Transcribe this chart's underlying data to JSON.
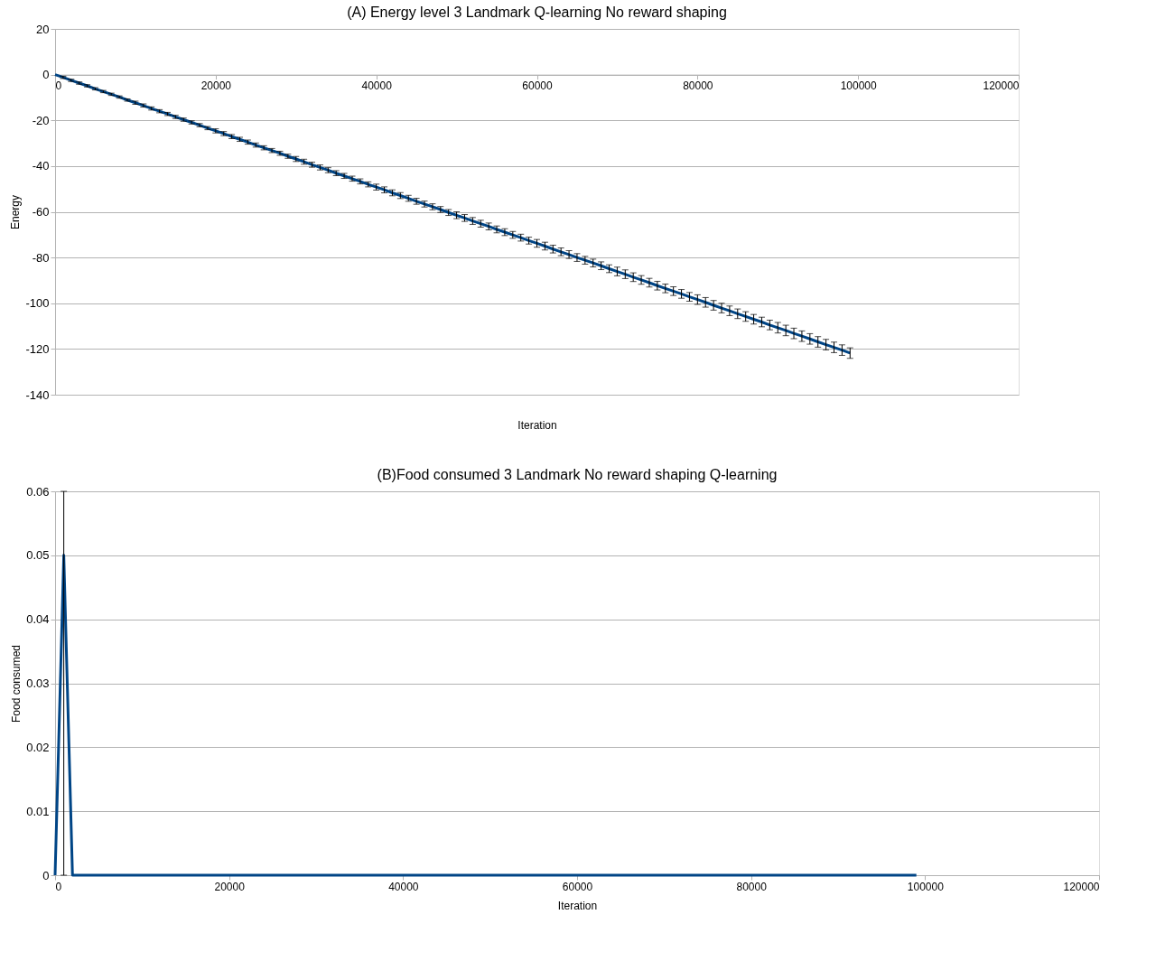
{
  "chart_data": [
    {
      "type": "line",
      "title": "(A) Energy level 3 Landmark Q-learning No reward shaping",
      "xlabel": "Iteration",
      "ylabel": "Energy",
      "x": [
        0,
        1000,
        2000,
        3000,
        4000,
        5000,
        6000,
        7000,
        8000,
        9000,
        10000,
        11000,
        12000,
        13000,
        14000,
        15000,
        16000,
        17000,
        18000,
        19000,
        20000,
        21000,
        22000,
        23000,
        24000,
        25000,
        26000,
        27000,
        28000,
        29000,
        30000,
        31000,
        32000,
        33000,
        34000,
        35000,
        36000,
        37000,
        38000,
        39000,
        40000,
        41000,
        42000,
        43000,
        44000,
        45000,
        46000,
        47000,
        48000,
        49000,
        50000,
        51000,
        52000,
        53000,
        54000,
        55000,
        56000,
        57000,
        58000,
        59000,
        60000,
        61000,
        62000,
        63000,
        64000,
        65000,
        66000,
        67000,
        68000,
        69000,
        70000,
        71000,
        72000,
        73000,
        74000,
        75000,
        76000,
        77000,
        78000,
        79000,
        80000,
        81000,
        82000,
        83000,
        84000,
        85000,
        86000,
        87000,
        88000,
        89000,
        90000,
        91000,
        92000,
        93000,
        94000,
        95000,
        96000,
        97000,
        98000,
        99000
      ],
      "series": [
        {
          "color": "#004586",
          "values": [
            0,
            -1.2,
            -2.5,
            -3.7,
            -4.9,
            -6.2,
            -7.4,
            -8.6,
            -9.8,
            -11.1,
            -12.3,
            -13.5,
            -14.8,
            -16.0,
            -17.2,
            -18.5,
            -19.7,
            -20.9,
            -22.1,
            -23.4,
            -24.6,
            -25.8,
            -27.1,
            -28.3,
            -29.5,
            -30.8,
            -32.0,
            -33.2,
            -34.4,
            -35.7,
            -36.9,
            -38.1,
            -39.4,
            -40.6,
            -41.8,
            -43.1,
            -44.3,
            -45.5,
            -46.7,
            -48.0,
            -49.2,
            -50.4,
            -51.7,
            -52.9,
            -54.1,
            -55.4,
            -56.6,
            -57.8,
            -59.0,
            -60.3,
            -61.5,
            -62.7,
            -64.0,
            -65.2,
            -66.4,
            -67.7,
            -68.9,
            -70.1,
            -71.3,
            -72.6,
            -73.8,
            -75.0,
            -76.3,
            -77.5,
            -78.7,
            -80.0,
            -81.2,
            -82.4,
            -83.6,
            -84.9,
            -86.1,
            -87.3,
            -88.6,
            -89.8,
            -91.0,
            -92.3,
            -93.5,
            -94.7,
            -95.9,
            -97.2,
            -98.4,
            -99.6,
            -100.9,
            -102.1,
            -103.3,
            -104.6,
            -105.8,
            -107.0,
            -108.2,
            -109.5,
            -110.7,
            -111.9,
            -113.2,
            -114.4,
            -115.6,
            -116.9,
            -118.1,
            -119.3,
            -120.5,
            -121.8
          ],
          "errors": [
            null,
            0.5,
            0.5,
            0.5,
            0.5,
            0.5,
            0.5,
            0.5,
            0.5,
            0.5,
            0.7,
            0.7,
            0.7,
            0.7,
            0.7,
            0.7,
            0.7,
            0.7,
            0.7,
            0.7,
            0.9,
            0.9,
            0.9,
            0.9,
            0.9,
            0.9,
            0.9,
            0.9,
            0.9,
            0.9,
            1.1,
            1.1,
            1.1,
            1.1,
            1.1,
            1.1,
            1.1,
            1.1,
            1.1,
            1.1,
            1.3,
            1.3,
            1.3,
            1.3,
            1.3,
            1.3,
            1.3,
            1.3,
            1.3,
            1.3,
            1.5,
            1.5,
            1.5,
            1.5,
            1.5,
            1.5,
            1.5,
            1.5,
            1.5,
            1.5,
            1.7,
            1.7,
            1.7,
            1.7,
            1.7,
            1.7,
            1.7,
            1.7,
            1.7,
            1.7,
            1.9,
            1.9,
            1.9,
            1.9,
            1.9,
            1.9,
            1.9,
            1.9,
            1.9,
            1.9,
            2.1,
            2.1,
            2.1,
            2.1,
            2.1,
            2.1,
            2.1,
            2.1,
            2.1,
            2.1,
            2.3,
            2.3,
            2.3,
            2.3,
            2.3,
            2.3,
            2.3,
            2.3,
            2.3,
            2.3
          ]
        }
      ],
      "xlim": [
        0,
        120000
      ],
      "xticks": [
        0,
        20000,
        40000,
        60000,
        80000,
        100000,
        120000
      ],
      "ylim": [
        -140,
        20
      ],
      "yticks": [
        -140,
        -120,
        -100,
        -80,
        -60,
        -40,
        -20,
        0,
        20
      ],
      "grid": "y",
      "marker": "none",
      "line_style": "solid"
    },
    {
      "type": "line",
      "title": "(B)Food consumed 3 Landmark No reward shaping Q-learning",
      "xlabel": "Iteration",
      "ylabel": "Food consumed",
      "x": [
        0,
        1000,
        2000,
        3000,
        4000,
        5000,
        6000,
        7000,
        8000,
        9000,
        10000,
        11000,
        12000,
        13000,
        14000,
        15000,
        16000,
        17000,
        18000,
        19000,
        20000,
        21000,
        22000,
        23000,
        24000,
        25000,
        26000,
        27000,
        28000,
        29000,
        30000,
        31000,
        32000,
        33000,
        34000,
        35000,
        36000,
        37000,
        38000,
        39000,
        40000,
        41000,
        42000,
        43000,
        44000,
        45000,
        46000,
        47000,
        48000,
        49000,
        50000,
        51000,
        52000,
        53000,
        54000,
        55000,
        56000,
        57000,
        58000,
        59000,
        60000,
        61000,
        62000,
        63000,
        64000,
        65000,
        66000,
        67000,
        68000,
        69000,
        70000,
        71000,
        72000,
        73000,
        74000,
        75000,
        76000,
        77000,
        78000,
        79000,
        80000,
        81000,
        82000,
        83000,
        84000,
        85000,
        86000,
        87000,
        88000,
        89000,
        90000,
        91000,
        92000,
        93000,
        94000,
        95000,
        96000,
        97000,
        98000,
        99000
      ],
      "series": [
        {
          "color": "#004586",
          "values": [
            0,
            0.05,
            0,
            0,
            0,
            0,
            0,
            0,
            0,
            0,
            0,
            0,
            0,
            0,
            0,
            0,
            0,
            0,
            0,
            0,
            0,
            0,
            0,
            0,
            0,
            0,
            0,
            0,
            0,
            0,
            0,
            0,
            0,
            0,
            0,
            0,
            0,
            0,
            0,
            0,
            0,
            0,
            0,
            0,
            0,
            0,
            0,
            0,
            0,
            0,
            0,
            0,
            0,
            0,
            0,
            0,
            0,
            0,
            0,
            0,
            0,
            0,
            0,
            0,
            0,
            0,
            0,
            0,
            0,
            0,
            0,
            0,
            0,
            0,
            0,
            0,
            0,
            0,
            0,
            0,
            0,
            0,
            0,
            0,
            0,
            0,
            0,
            0,
            0,
            0,
            0,
            0,
            0,
            0,
            0,
            0,
            0,
            0,
            0,
            0
          ],
          "errors": [
            null,
            [
              0,
              0.06
            ],
            null,
            null,
            null,
            null,
            null,
            null,
            null,
            null,
            null,
            null,
            null,
            null,
            null,
            null,
            null,
            null,
            null,
            null,
            null,
            null,
            null,
            null,
            null,
            null,
            null,
            null,
            null,
            null,
            null,
            null,
            null,
            null,
            null,
            null,
            null,
            null,
            null,
            null,
            null,
            null,
            null,
            null,
            null,
            null,
            null,
            null,
            null,
            null,
            null,
            null,
            null,
            null,
            null,
            null,
            null,
            null,
            null,
            null,
            null,
            null,
            null,
            null,
            null,
            null,
            null,
            null,
            null,
            null,
            null,
            null,
            null,
            null,
            null,
            null,
            null,
            null,
            null,
            null,
            null,
            null,
            null,
            null,
            null,
            null,
            null,
            null,
            null,
            null,
            null,
            null,
            null,
            null,
            null,
            null,
            null,
            null,
            null,
            null
          ]
        }
      ],
      "xlim": [
        0,
        120000
      ],
      "xticks": [
        0,
        20000,
        40000,
        60000,
        80000,
        100000,
        120000
      ],
      "ylim": [
        0,
        0.06
      ],
      "yticks": [
        0,
        0.01,
        0.02,
        0.03,
        0.04,
        0.05,
        0.06
      ],
      "grid": "y",
      "marker": "none",
      "line_style": "solid"
    }
  ]
}
